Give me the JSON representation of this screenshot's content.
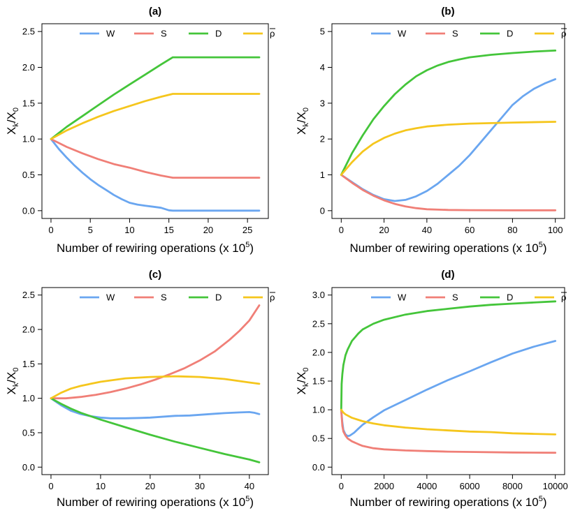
{
  "colors": {
    "W": "#6aa6f0",
    "S": "#f07f77",
    "D": "#44c53a",
    "rho": "#f5c61d"
  },
  "chart_data": [
    {
      "id": "a",
      "type": "line",
      "title": "(a)",
      "xlabel": "Number of rewiring operations (x 10",
      "xlabel_sup": "5",
      "xlabel_end": ")",
      "ylabel_main": "X",
      "ylabel_sub": "k",
      "ylabel_slash": "/X",
      "ylabel_sub2": "0",
      "xlim": [
        0,
        26.5
      ],
      "ylim": [
        0,
        2.5
      ],
      "xticks": [
        0,
        5,
        10,
        15,
        20,
        25
      ],
      "xtick_labels": [
        "0",
        "5",
        "10",
        "15",
        "20",
        "25"
      ],
      "yticks": [
        0,
        0.5,
        1,
        1.5,
        2,
        2.5
      ],
      "ytick_labels": [
        "0.0",
        "0.5",
        "1.0",
        "1.5",
        "2.0",
        "2.5"
      ],
      "legend": [
        "W",
        "S",
        "D",
        "ρ"
      ],
      "series": [
        {
          "name": "W",
          "color": "#6aa6f0",
          "x": [
            0,
            1,
            2,
            3,
            4,
            5,
            6,
            7,
            8,
            9,
            10,
            11,
            12,
            13,
            14,
            15,
            15.5,
            20,
            26.5
          ],
          "y": [
            1,
            0.86,
            0.74,
            0.63,
            0.53,
            0.44,
            0.36,
            0.29,
            0.22,
            0.16,
            0.11,
            0.085,
            0.07,
            0.055,
            0.04,
            0.005,
            0,
            0,
            0
          ]
        },
        {
          "name": "S",
          "color": "#f07f77",
          "x": [
            0,
            2,
            4,
            6,
            8,
            10,
            12,
            14,
            15.5,
            20,
            26.5
          ],
          "y": [
            1,
            0.89,
            0.8,
            0.72,
            0.65,
            0.6,
            0.54,
            0.49,
            0.46,
            0.46,
            0.46
          ]
        },
        {
          "name": "D",
          "color": "#44c53a",
          "x": [
            0,
            2,
            4,
            6,
            8,
            10,
            12,
            14,
            15.5,
            20,
            26.5
          ],
          "y": [
            1,
            1.17,
            1.32,
            1.47,
            1.62,
            1.76,
            1.9,
            2.04,
            2.14,
            2.14,
            2.14
          ]
        },
        {
          "name": "ρ",
          "color": "#f5c61d",
          "x": [
            0,
            2,
            4,
            6,
            8,
            10,
            12,
            14,
            15.5,
            20,
            26.5
          ],
          "y": [
            1,
            1.12,
            1.22,
            1.31,
            1.39,
            1.46,
            1.53,
            1.59,
            1.63,
            1.63,
            1.63
          ]
        }
      ]
    },
    {
      "id": "b",
      "type": "line",
      "title": "(b)",
      "xlabel": "Number of rewiring operations (x 10",
      "xlabel_sup": "5",
      "xlabel_end": ")",
      "ylabel_main": "X",
      "ylabel_sub": "k",
      "ylabel_slash": "/X",
      "ylabel_sub2": "0",
      "xlim": [
        0,
        100
      ],
      "ylim": [
        0,
        5
      ],
      "xticks": [
        0,
        20,
        40,
        60,
        80,
        100
      ],
      "xtick_labels": [
        "0",
        "20",
        "40",
        "60",
        "80",
        "100"
      ],
      "yticks": [
        0,
        1,
        2,
        3,
        4,
        5
      ],
      "ytick_labels": [
        "0",
        "1",
        "2",
        "3",
        "4",
        "5"
      ],
      "legend": [
        "W",
        "S",
        "D",
        "ρ"
      ],
      "series": [
        {
          "name": "W",
          "color": "#6aa6f0",
          "x": [
            0,
            5,
            10,
            15,
            20,
            25,
            30,
            35,
            40,
            45,
            50,
            55,
            60,
            65,
            70,
            75,
            80,
            85,
            90,
            95,
            100
          ],
          "y": [
            1,
            0.8,
            0.6,
            0.44,
            0.32,
            0.27,
            0.3,
            0.4,
            0.55,
            0.75,
            1.0,
            1.25,
            1.55,
            1.9,
            2.25,
            2.6,
            2.95,
            3.2,
            3.4,
            3.55,
            3.67
          ]
        },
        {
          "name": "S",
          "color": "#f07f77",
          "x": [
            0,
            5,
            10,
            15,
            20,
            25,
            30,
            35,
            40,
            50,
            60,
            80,
            100
          ],
          "y": [
            1,
            0.78,
            0.58,
            0.42,
            0.29,
            0.19,
            0.12,
            0.07,
            0.04,
            0.02,
            0.015,
            0.01,
            0.01
          ]
        },
        {
          "name": "D",
          "color": "#44c53a",
          "x": [
            0,
            5,
            10,
            15,
            20,
            25,
            30,
            35,
            40,
            45,
            50,
            55,
            60,
            70,
            80,
            90,
            100
          ],
          "y": [
            1,
            1.6,
            2.1,
            2.55,
            2.92,
            3.25,
            3.52,
            3.75,
            3.92,
            4.05,
            4.15,
            4.22,
            4.28,
            4.35,
            4.4,
            4.44,
            4.47
          ]
        },
        {
          "name": "ρ",
          "color": "#f5c61d",
          "x": [
            0,
            5,
            10,
            15,
            20,
            25,
            30,
            35,
            40,
            50,
            60,
            80,
            100
          ],
          "y": [
            1,
            1.35,
            1.65,
            1.87,
            2.03,
            2.15,
            2.24,
            2.3,
            2.35,
            2.4,
            2.43,
            2.46,
            2.48
          ]
        }
      ]
    },
    {
      "id": "c",
      "type": "line",
      "title": "(c)",
      "xlabel": "Number of rewiring operations (x 10",
      "xlabel_sup": "5",
      "xlabel_end": ")",
      "ylabel_main": "X",
      "ylabel_sub": "k",
      "ylabel_slash": "/X",
      "ylabel_sub2": "0",
      "xlim": [
        0,
        42
      ],
      "ylim": [
        0,
        2.5
      ],
      "xticks": [
        0,
        10,
        20,
        30,
        40
      ],
      "xtick_labels": [
        "0",
        "10",
        "20",
        "30",
        "40"
      ],
      "yticks": [
        0,
        0.5,
        1,
        1.5,
        2,
        2.5
      ],
      "ytick_labels": [
        "0.0",
        "0.5",
        "1.0",
        "1.5",
        "2.0",
        "2.5"
      ],
      "legend": [
        "W",
        "S",
        "D",
        "ρ"
      ],
      "series": [
        {
          "name": "W",
          "color": "#6aa6f0",
          "x": [
            0,
            2,
            4,
            6,
            8,
            10,
            12,
            15,
            18,
            20,
            22,
            25,
            28,
            30,
            33,
            35,
            38,
            40,
            41,
            42
          ],
          "y": [
            1,
            0.9,
            0.82,
            0.77,
            0.74,
            0.72,
            0.71,
            0.71,
            0.715,
            0.72,
            0.73,
            0.745,
            0.75,
            0.76,
            0.775,
            0.785,
            0.795,
            0.8,
            0.79,
            0.77
          ]
        },
        {
          "name": "S",
          "color": "#f07f77",
          "x": [
            0,
            3,
            6,
            9,
            12,
            15,
            18,
            21,
            24,
            27,
            30,
            33,
            36,
            38,
            40,
            42
          ],
          "y": [
            1,
            1.0,
            1.02,
            1.05,
            1.09,
            1.14,
            1.2,
            1.27,
            1.35,
            1.44,
            1.55,
            1.68,
            1.85,
            1.98,
            2.13,
            2.35
          ]
        },
        {
          "name": "D",
          "color": "#44c53a",
          "x": [
            0,
            2,
            4,
            6,
            8,
            10,
            15,
            20,
            25,
            30,
            35,
            40,
            42
          ],
          "y": [
            1,
            0.92,
            0.85,
            0.79,
            0.74,
            0.69,
            0.58,
            0.47,
            0.37,
            0.28,
            0.19,
            0.11,
            0.07
          ]
        },
        {
          "name": "ρ",
          "color": "#f5c61d",
          "x": [
            0,
            2,
            4,
            6,
            8,
            10,
            15,
            20,
            25,
            30,
            35,
            40,
            42
          ],
          "y": [
            1,
            1.08,
            1.14,
            1.18,
            1.21,
            1.24,
            1.29,
            1.31,
            1.32,
            1.31,
            1.28,
            1.23,
            1.21
          ]
        }
      ]
    },
    {
      "id": "d",
      "type": "line",
      "title": "(d)",
      "xlabel": "Number of rewiring operations (x 10",
      "xlabel_sup": "5",
      "xlabel_end": ")",
      "ylabel_main": "X",
      "ylabel_sub": "k",
      "ylabel_slash": "/X",
      "ylabel_sub2": "0",
      "xlim": [
        0,
        10000
      ],
      "ylim": [
        0,
        3
      ],
      "xticks": [
        0,
        2000,
        4000,
        6000,
        8000,
        10000
      ],
      "xtick_labels": [
        "0",
        "2000",
        "4000",
        "6000",
        "8000",
        "10000"
      ],
      "yticks": [
        0,
        0.5,
        1,
        1.5,
        2,
        2.5,
        3
      ],
      "ytick_labels": [
        "0.0",
        "0.5",
        "1.0",
        "1.5",
        "2.0",
        "2.5",
        "3.0"
      ],
      "legend": [
        "W",
        "S",
        "D",
        "ρ"
      ],
      "series": [
        {
          "name": "W",
          "color": "#6aa6f0",
          "x": [
            0,
            50,
            100,
            200,
            300,
            400,
            600,
            800,
            1000,
            1500,
            2000,
            3000,
            4000,
            5000,
            6000,
            7000,
            8000,
            9000,
            10000
          ],
          "y": [
            1,
            0.78,
            0.65,
            0.57,
            0.54,
            0.55,
            0.6,
            0.67,
            0.74,
            0.87,
            0.99,
            1.17,
            1.35,
            1.52,
            1.67,
            1.83,
            1.98,
            2.1,
            2.2
          ]
        },
        {
          "name": "S",
          "color": "#f07f77",
          "x": [
            0,
            50,
            100,
            200,
            300,
            500,
            800,
            1000,
            1500,
            2000,
            3000,
            4000,
            5000,
            6000,
            8000,
            10000
          ],
          "y": [
            1,
            0.72,
            0.62,
            0.55,
            0.5,
            0.45,
            0.4,
            0.37,
            0.33,
            0.31,
            0.29,
            0.28,
            0.27,
            0.265,
            0.255,
            0.25
          ]
        },
        {
          "name": "D",
          "color": "#44c53a",
          "x": [
            0,
            20,
            50,
            100,
            200,
            300,
            500,
            800,
            1000,
            1500,
            2000,
            3000,
            4000,
            5000,
            6000,
            7000,
            8000,
            9000,
            10000
          ],
          "y": [
            1,
            1.45,
            1.62,
            1.78,
            1.95,
            2.05,
            2.2,
            2.33,
            2.4,
            2.5,
            2.57,
            2.66,
            2.72,
            2.76,
            2.8,
            2.83,
            2.85,
            2.87,
            2.89
          ]
        },
        {
          "name": "ρ",
          "color": "#f5c61d",
          "x": [
            0,
            100,
            200,
            500,
            1000,
            1500,
            2000,
            3000,
            4000,
            5000,
            6000,
            7000,
            8000,
            9000,
            10000
          ],
          "y": [
            1,
            0.95,
            0.92,
            0.86,
            0.8,
            0.76,
            0.73,
            0.69,
            0.66,
            0.64,
            0.62,
            0.61,
            0.59,
            0.58,
            0.57
          ]
        }
      ]
    }
  ]
}
